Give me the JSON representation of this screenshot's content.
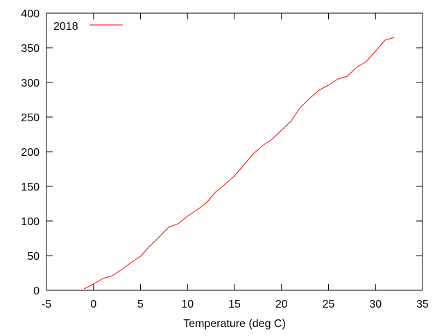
{
  "chart_data": {
    "type": "line",
    "title": "",
    "xlabel": "Temperature (deg C)",
    "ylabel": "",
    "xlim": [
      -5,
      35
    ],
    "ylim": [
      0,
      400
    ],
    "xticks": [
      -5,
      0,
      5,
      10,
      15,
      20,
      25,
      30,
      35
    ],
    "yticks": [
      0,
      50,
      100,
      150,
      200,
      250,
      300,
      350,
      400
    ],
    "grid": false,
    "legend_position": "top-left",
    "series": [
      {
        "name": "2018",
        "color": "#ff0000",
        "x": [
          -1,
          0,
          1,
          2,
          3,
          4,
          5,
          6,
          7,
          8,
          9,
          10,
          11,
          12,
          13,
          14,
          15,
          16,
          17,
          18,
          19,
          20,
          21,
          22,
          23,
          24,
          25,
          26,
          27,
          28,
          29,
          30,
          31,
          32
        ],
        "y": [
          2,
          9,
          17,
          21,
          30,
          40,
          49,
          64,
          77,
          91,
          96,
          107,
          116,
          126,
          142,
          153,
          165,
          181,
          197,
          209,
          218,
          231,
          244,
          264,
          277,
          289,
          296,
          305,
          309,
          322,
          330,
          345,
          361,
          365
        ]
      }
    ]
  }
}
